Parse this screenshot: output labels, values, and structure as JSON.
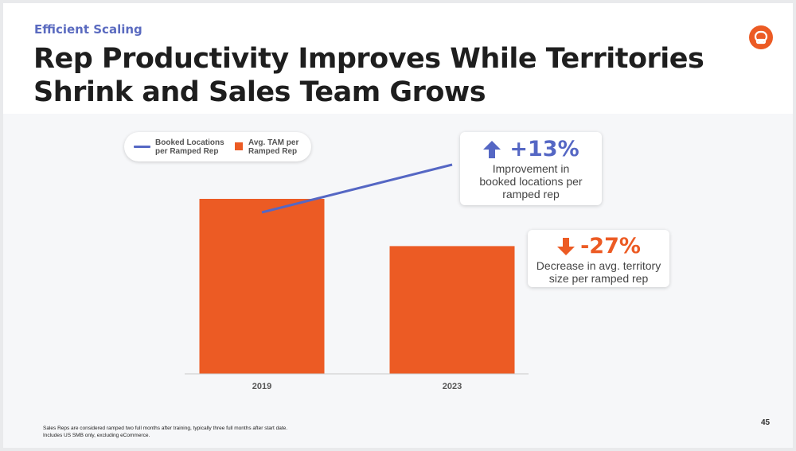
{
  "slide": {
    "eyebrow": "Efficient Scaling",
    "title": "Rep Productivity Improves While Territories Shrink and Sales Team Grows",
    "page_number": "45",
    "footnote_line1": "Sales Reps are considered ramped two full months after training, typically three full months after start date.",
    "footnote_line2": "Includes US SMB only, excluding eCommerce.",
    "logo_icon": "chat-bubble-logo-icon"
  },
  "colors": {
    "accent_blue": "#5567c4",
    "accent_orange": "#ec5b24",
    "eyebrow": "#5b6bc0"
  },
  "legend": {
    "line_label_1": "Booked Locations",
    "line_label_2": "per Ramped Rep",
    "bar_label_1": "Avg. TAM per",
    "bar_label_2": "Ramped Rep"
  },
  "callouts": {
    "up": {
      "icon": "arrow-up-icon",
      "value": "+13%",
      "line1": "Improvement in",
      "line2": "booked locations per",
      "line3": "ramped rep"
    },
    "down": {
      "icon": "arrow-down-icon",
      "value": "-27%",
      "line1": "Decrease in avg. territory",
      "line2": "size per ramped rep"
    }
  },
  "chart_data": {
    "type": "bar",
    "categories": [
      "2019",
      "2023"
    ],
    "series": [
      {
        "name": "Avg. TAM per Ramped Rep",
        "type": "bar",
        "values": [
          100,
          73
        ]
      },
      {
        "name": "Booked Locations per Ramped Rep",
        "type": "line",
        "values": [
          100,
          113
        ]
      }
    ],
    "bar_ylim": [
      0,
      100
    ],
    "line_ylim": [
      100,
      113
    ],
    "grid": false,
    "legend_position": "top-left",
    "value_axis_labels": false
  }
}
